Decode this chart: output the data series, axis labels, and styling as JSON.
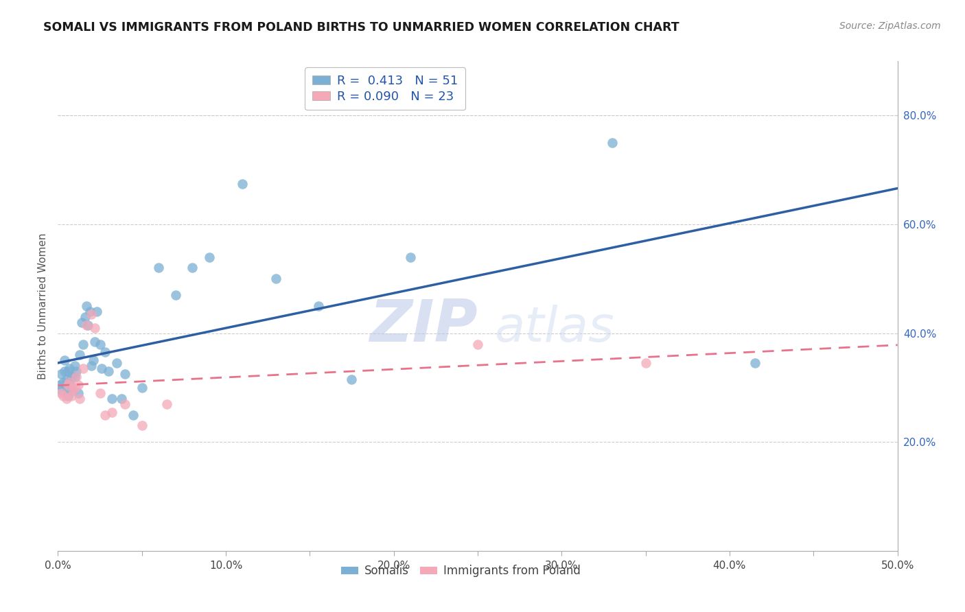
{
  "title": "SOMALI VS IMMIGRANTS FROM POLAND BIRTHS TO UNMARRIED WOMEN CORRELATION CHART",
  "source": "Source: ZipAtlas.com",
  "ylabel": "Births to Unmarried Women",
  "xlim": [
    0.0,
    0.5
  ],
  "ylim": [
    0.0,
    0.9
  ],
  "xtick_labels": [
    "0.0%",
    "",
    "10.0%",
    "",
    "20.0%",
    "",
    "30.0%",
    "",
    "40.0%",
    "",
    "50.0%"
  ],
  "xtick_vals": [
    0.0,
    0.05,
    0.1,
    0.15,
    0.2,
    0.25,
    0.3,
    0.35,
    0.4,
    0.45,
    0.5
  ],
  "ytick_right_labels": [
    "20.0%",
    "40.0%",
    "60.0%",
    "80.0%"
  ],
  "ytick_right_vals": [
    0.2,
    0.4,
    0.6,
    0.8
  ],
  "somali_color": "#7BAFD4",
  "poland_color": "#F4A8B8",
  "line_somali_color": "#2E5FA3",
  "line_poland_color": "#E8728A",
  "R_somali": "0.413",
  "N_somali": "51",
  "R_poland": "0.090",
  "N_poland": "23",
  "legend_bottom": [
    "Somalis",
    "Immigrants from Poland"
  ],
  "watermark_zip": "ZIP",
  "watermark_atlas": "atlas",
  "somali_x": [
    0.001,
    0.002,
    0.002,
    0.003,
    0.004,
    0.004,
    0.005,
    0.005,
    0.006,
    0.006,
    0.007,
    0.007,
    0.008,
    0.008,
    0.009,
    0.01,
    0.01,
    0.011,
    0.012,
    0.013,
    0.014,
    0.015,
    0.016,
    0.017,
    0.018,
    0.019,
    0.02,
    0.021,
    0.022,
    0.023,
    0.025,
    0.026,
    0.028,
    0.03,
    0.032,
    0.035,
    0.038,
    0.04,
    0.045,
    0.05,
    0.06,
    0.07,
    0.08,
    0.09,
    0.11,
    0.13,
    0.155,
    0.175,
    0.21,
    0.33,
    0.415
  ],
  "somali_y": [
    0.305,
    0.295,
    0.325,
    0.31,
    0.33,
    0.35,
    0.3,
    0.315,
    0.285,
    0.33,
    0.31,
    0.335,
    0.3,
    0.32,
    0.295,
    0.32,
    0.34,
    0.33,
    0.29,
    0.36,
    0.42,
    0.38,
    0.43,
    0.45,
    0.415,
    0.44,
    0.34,
    0.35,
    0.385,
    0.44,
    0.38,
    0.335,
    0.365,
    0.33,
    0.28,
    0.345,
    0.28,
    0.325,
    0.25,
    0.3,
    0.52,
    0.47,
    0.52,
    0.54,
    0.675,
    0.5,
    0.45,
    0.315,
    0.54,
    0.75,
    0.345
  ],
  "poland_x": [
    0.002,
    0.003,
    0.005,
    0.006,
    0.007,
    0.008,
    0.009,
    0.01,
    0.011,
    0.012,
    0.013,
    0.015,
    0.017,
    0.02,
    0.022,
    0.025,
    0.028,
    0.032,
    0.04,
    0.05,
    0.065,
    0.25,
    0.35
  ],
  "poland_y": [
    0.29,
    0.285,
    0.28,
    0.305,
    0.31,
    0.285,
    0.295,
    0.3,
    0.32,
    0.305,
    0.28,
    0.335,
    0.415,
    0.435,
    0.41,
    0.29,
    0.25,
    0.255,
    0.27,
    0.23,
    0.27,
    0.38,
    0.345
  ]
}
